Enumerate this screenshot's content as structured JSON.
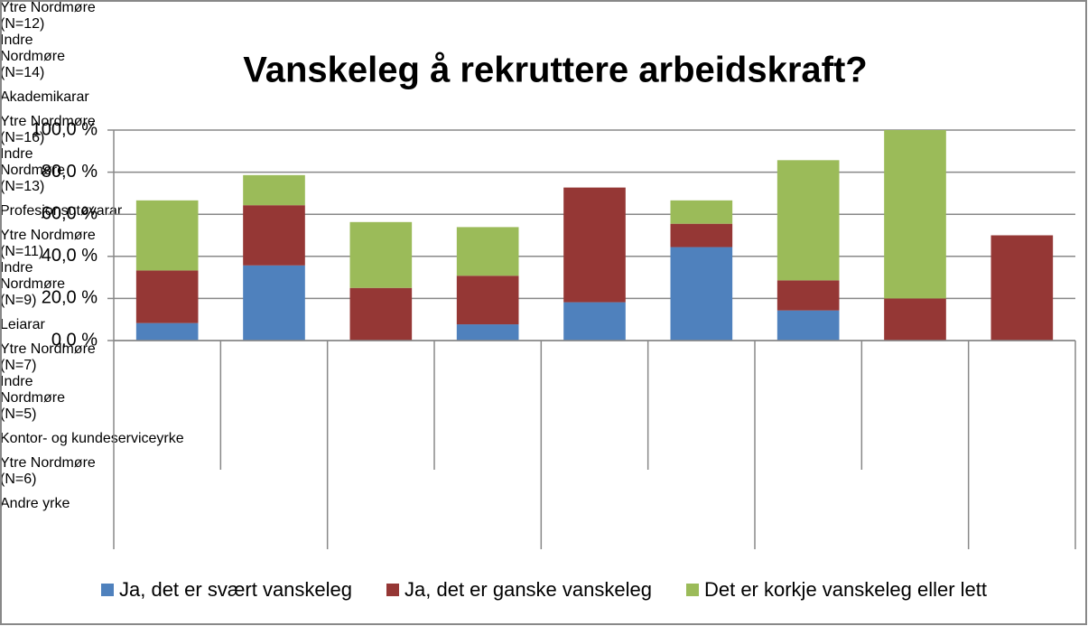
{
  "chart_data": {
    "type": "stacked_bar",
    "title": "Vanskeleg å rekruttere arbeidskraft?",
    "groups": [
      {
        "name": "Akademikarar",
        "categories": [
          "Ytre Nordmøre (N=12)",
          "Indre Nordmøre (N=14)"
        ]
      },
      {
        "name": "Profesjonsutøvarar",
        "categories": [
          "Ytre Nordmøre (N=16)",
          "Indre Nordmøre (N=13)"
        ]
      },
      {
        "name": "Leiarar",
        "categories": [
          "Ytre Nordmøre (N=11)",
          "Indre Nordmøre (N=9)"
        ]
      },
      {
        "name": "Kontor- og kundeserviceyrke",
        "categories": [
          "Ytre Nordmøre (N=7)",
          "Indre Nordmøre (N=5)"
        ]
      },
      {
        "name": "Andre yrke",
        "categories": [
          "Ytre Nordmøre (N=6)"
        ]
      }
    ],
    "series": [
      {
        "name": "Ja, det er svært vanskeleg",
        "color": "#4f81bd",
        "values": [
          8.3,
          35.7,
          0,
          7.7,
          18.2,
          44.4,
          14.3,
          0,
          0
        ]
      },
      {
        "name": "Ja, det er ganske vanskeleg",
        "color": "#953735",
        "values": [
          25.0,
          28.6,
          25.0,
          23.1,
          54.5,
          11.1,
          14.3,
          20.0,
          50.0
        ]
      },
      {
        "name": "Det er korkje vanskeleg eller lett",
        "color": "#9bbb59",
        "values": [
          33.3,
          14.3,
          31.3,
          23.1,
          0,
          11.1,
          57.1,
          80.0,
          0
        ]
      }
    ],
    "ylim": [
      0,
      100
    ],
    "yticks": [
      {
        "value": 0,
        "label": "0,0 %"
      },
      {
        "value": 20,
        "label": "20,0 %"
      },
      {
        "value": 40,
        "label": "40,0 %"
      },
      {
        "value": 60,
        "label": "60,0 %"
      },
      {
        "value": 80,
        "label": "80,0 %"
      },
      {
        "value": 100,
        "label": "100,0 %"
      }
    ],
    "grid": true,
    "legend": "bottom"
  }
}
